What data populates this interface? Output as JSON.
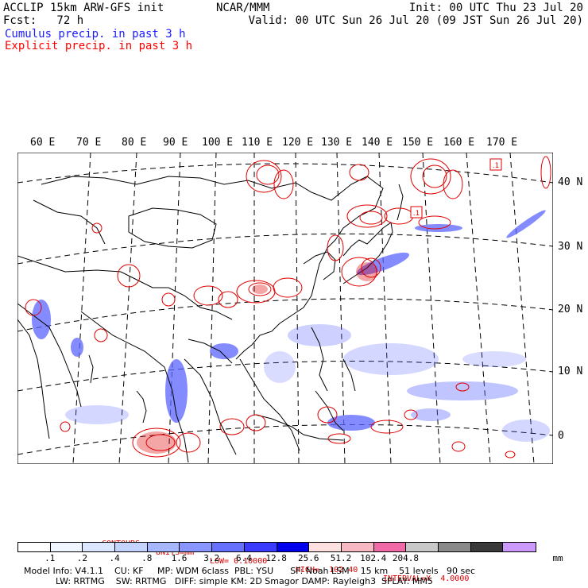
{
  "header": {
    "title_line1": "ACCLIP 15km ARW-GFS init",
    "title_line2": "Fcst:   72 h",
    "org": "NCAR/MMM",
    "init": "Init: 00 UTC Thu 23 Jul 20",
    "valid": "Valid: 00 UTC Sun 26 Jul 20 (09 JST Sun 26 Jul 20)",
    "legend_blue": "Cumulus precip. in past 3 h",
    "legend_red": "Explicit precip. in past 3 h"
  },
  "colors": {
    "blue_text": "#1a1aff",
    "red_text": "#ff0000",
    "contour": "#e00000",
    "coast": "#000000"
  },
  "map": {
    "lon_labels": [
      "60 E",
      "70 E",
      "80 E",
      "90 E",
      "100 E",
      "110 E",
      "120 E",
      "130 E",
      "140 E",
      "150 E",
      "160 E",
      "170 E"
    ],
    "lat_labels": [
      "40 N",
      "30 N",
      "20 N",
      "10 N",
      "0"
    ],
    "box_label": ".1"
  },
  "contour_info": {
    "contours": "CONTOURS:",
    "units": "UNITS=mm",
    "low": "LOW= 0.10000",
    "high": "HIGH=  102.40",
    "interval": "INTERVAL=X  4.0000"
  },
  "colorbar": {
    "colors": [
      "#ffffff",
      "#f0f6ff",
      "#dce8ff",
      "#c4d4ff",
      "#a6b6ff",
      "#8a96ff",
      "#6670ff",
      "#3b3bff",
      "#0000ee",
      "#fde0e0",
      "#f7b8c4",
      "#f06aa8",
      "#c8c8c8",
      "#8a8a8a",
      "#3a3a3a",
      "#cc99ff"
    ],
    "tick_labels": [
      ".1",
      ".2",
      ".4",
      ".8",
      "1.6",
      "3.2",
      "6.4",
      "12.8",
      "25.6",
      "51.2",
      "102.4",
      "204.8"
    ],
    "units": "mm"
  },
  "footer": {
    "line1": "Model Info: V4.1.1    CU: KF     MP: WDM 6class  PBL: YSU      SF: Noah LSM    15 km    51 levels   90 sec",
    "line2": "LW: RRTMG    SW: RRTMG   DIFF: simple KM: 2D Smagor DAMP: Rayleigh3  SFLAY: MM5"
  }
}
